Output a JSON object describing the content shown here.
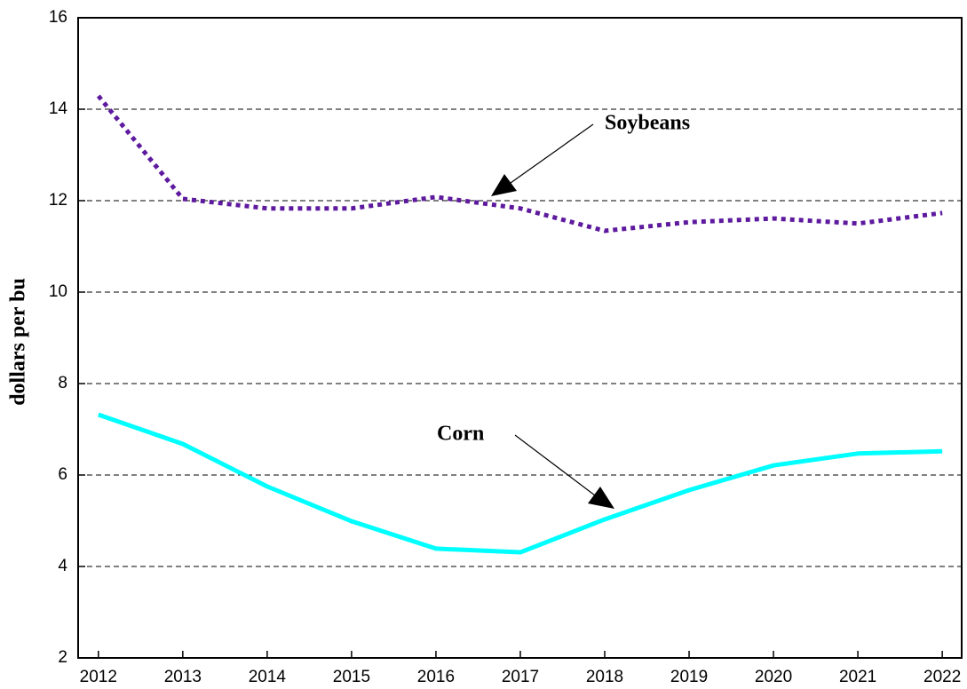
{
  "chart_data": {
    "type": "line",
    "y_label": "dollars per bu",
    "x": [
      2012,
      2013,
      2014,
      2015,
      2016,
      2017,
      2018,
      2019,
      2020,
      2021,
      2022
    ],
    "series": [
      {
        "name": "Soybeans",
        "color": "#5e1a9e",
        "style": "dotted",
        "values": [
          14.29,
          12.04,
          11.83,
          11.83,
          12.08,
          11.83,
          11.34,
          11.53,
          11.61,
          11.5,
          11.73
        ]
      },
      {
        "name": "Corn",
        "color": "#00ffff",
        "style": "solid",
        "values": [
          7.32,
          6.68,
          5.75,
          4.99,
          4.39,
          4.31,
          5.03,
          5.67,
          6.21,
          6.47,
          6.52
        ]
      }
    ],
    "xlim": [
      2011.76,
      2022.23
    ],
    "xticks": [
      2012,
      2013,
      2014,
      2015,
      2016,
      2017,
      2018,
      2019,
      2020,
      2021,
      2022
    ],
    "ylim": [
      2,
      16
    ],
    "yticks": [
      2,
      4,
      6,
      8,
      10,
      12,
      14,
      16
    ],
    "grid": true
  }
}
